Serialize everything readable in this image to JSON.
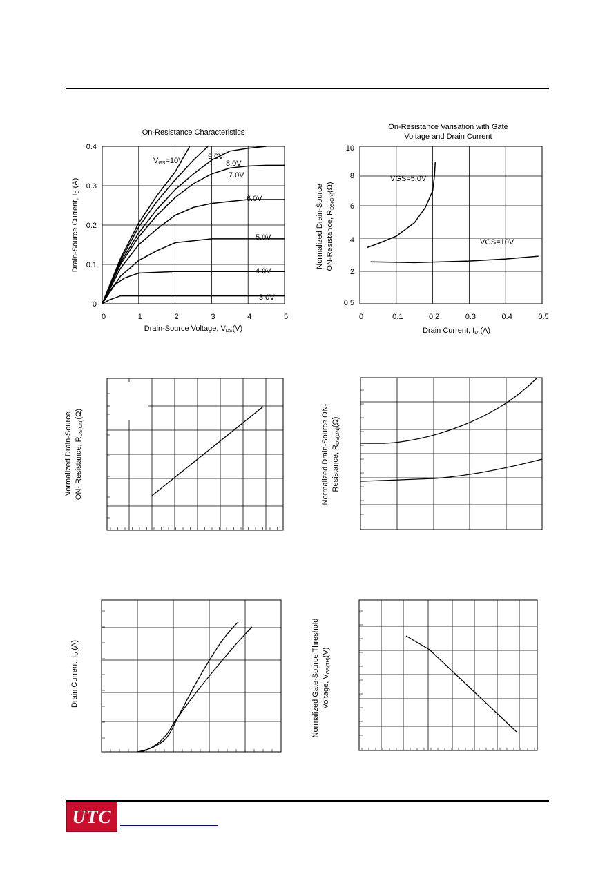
{
  "page": {
    "logo_text": "UTC"
  },
  "chart_data": [
    {
      "type": "line",
      "title": "On-Resistance Characteristics",
      "xlabel": "Drain-Source Voltage, VDS(V)",
      "ylabel": "Drain-Source Current, ID (A)",
      "xlim": [
        0,
        5
      ],
      "ylim": [
        0,
        0.4
      ],
      "x_ticks": [
        "0",
        "1",
        "2",
        "3",
        "4",
        "5"
      ],
      "y_ticks": [
        "0",
        "0.1",
        "0.2",
        "0.3",
        "0.4"
      ],
      "grid": true,
      "series": [
        {
          "name": "VGS=10V",
          "points": [
            [
              0,
              0
            ],
            [
              0.5,
              0.115
            ],
            [
              1,
              0.205
            ],
            [
              1.5,
              0.275
            ],
            [
              2,
              0.335
            ],
            [
              2.4,
              0.4
            ]
          ]
        },
        {
          "name": "9.0V",
          "points": [
            [
              0,
              0
            ],
            [
              0.5,
              0.11
            ],
            [
              1,
              0.195
            ],
            [
              1.5,
              0.26
            ],
            [
              2,
              0.315
            ],
            [
              2.5,
              0.365
            ],
            [
              2.9,
              0.4
            ]
          ]
        },
        {
          "name": "8.0V",
          "points": [
            [
              0,
              0
            ],
            [
              0.5,
              0.105
            ],
            [
              1,
              0.18
            ],
            [
              1.5,
              0.24
            ],
            [
              2,
              0.29
            ],
            [
              2.5,
              0.33
            ],
            [
              3,
              0.365
            ],
            [
              3.5,
              0.388
            ],
            [
              4,
              0.395
            ],
            [
              4.5,
              0.4
            ]
          ]
        },
        {
          "name": "7.0V",
          "points": [
            [
              0,
              0
            ],
            [
              0.5,
              0.1
            ],
            [
              1,
              0.17
            ],
            [
              1.5,
              0.225
            ],
            [
              2,
              0.27
            ],
            [
              2.5,
              0.305
            ],
            [
              3,
              0.33
            ],
            [
              3.5,
              0.345
            ],
            [
              4,
              0.35
            ],
            [
              4.5,
              0.352
            ],
            [
              5,
              0.352
            ]
          ]
        },
        {
          "name": "6.0V",
          "points": [
            [
              0,
              0
            ],
            [
              0.5,
              0.09
            ],
            [
              1,
              0.15
            ],
            [
              1.5,
              0.19
            ],
            [
              2,
              0.225
            ],
            [
              2.5,
              0.245
            ],
            [
              3,
              0.255
            ],
            [
              3.5,
              0.26
            ],
            [
              4,
              0.265
            ],
            [
              5,
              0.265
            ]
          ]
        },
        {
          "name": "5.0V",
          "points": [
            [
              0,
              0
            ],
            [
              0.5,
              0.07
            ],
            [
              1,
              0.11
            ],
            [
              1.5,
              0.135
            ],
            [
              2,
              0.155
            ],
            [
              3,
              0.165
            ],
            [
              5,
              0.165
            ]
          ]
        },
        {
          "name": "4.0V",
          "points": [
            [
              0,
              0
            ],
            [
              0.3,
              0.045
            ],
            [
              0.6,
              0.065
            ],
            [
              1,
              0.078
            ],
            [
              2,
              0.082
            ],
            [
              5,
              0.082
            ]
          ]
        },
        {
          "name": "3.0V",
          "points": [
            [
              0,
              0
            ],
            [
              0.2,
              0.01
            ],
            [
              0.5,
              0.02
            ],
            [
              1,
              0.02
            ],
            [
              5,
              0.02
            ]
          ]
        }
      ]
    },
    {
      "type": "line",
      "title": "On-Resistance Varisation with Gate Voltage and Drain Current",
      "xlabel": "Drain Current, ID (A)",
      "ylabel": "Normalized Drain-Source ON-Resistance, RDS(ON)(Ω)",
      "xlim": [
        0,
        0.5
      ],
      "x_ticks": [
        "0",
        "0.1",
        "0.2",
        "0.3",
        "0.4",
        "0.5"
      ],
      "y_ticks": [
        "0.5",
        "2",
        "4",
        "6",
        "8",
        "10"
      ],
      "grid": true,
      "series": [
        {
          "name": "VGS=5.0V",
          "points": [
            [
              0.02,
              3.5
            ],
            [
              0.05,
              3.75
            ],
            [
              0.1,
              4.2
            ],
            [
              0.15,
              5.0
            ],
            [
              0.18,
              5.9
            ],
            [
              0.2,
              7.0
            ],
            [
              0.205,
              8.0
            ],
            [
              0.207,
              9.0
            ]
          ]
        },
        {
          "name": "VGS=10V",
          "points": [
            [
              0.03,
              2.6
            ],
            [
              0.15,
              2.55
            ],
            [
              0.3,
              2.65
            ],
            [
              0.4,
              2.78
            ],
            [
              0.49,
              2.95
            ]
          ]
        }
      ]
    },
    {
      "type": "line",
      "xlabel": "",
      "ylabel": "Normalized Drain-Source ON- Resistance, RDS(ON)(Ω)",
      "grid": true
    },
    {
      "type": "line",
      "xlabel": "",
      "ylabel": "Normalized Drain-Source ON- Resistance, RDS(ON)(Ω)",
      "grid": true
    },
    {
      "type": "line",
      "xlabel": "",
      "ylabel": "Drain Current, ID (A)",
      "grid": true
    },
    {
      "type": "line",
      "xlabel": "",
      "ylabel": "Normalized Gate-Source Threshold Voltage, VGS(TH)(V)",
      "grid": true
    }
  ]
}
